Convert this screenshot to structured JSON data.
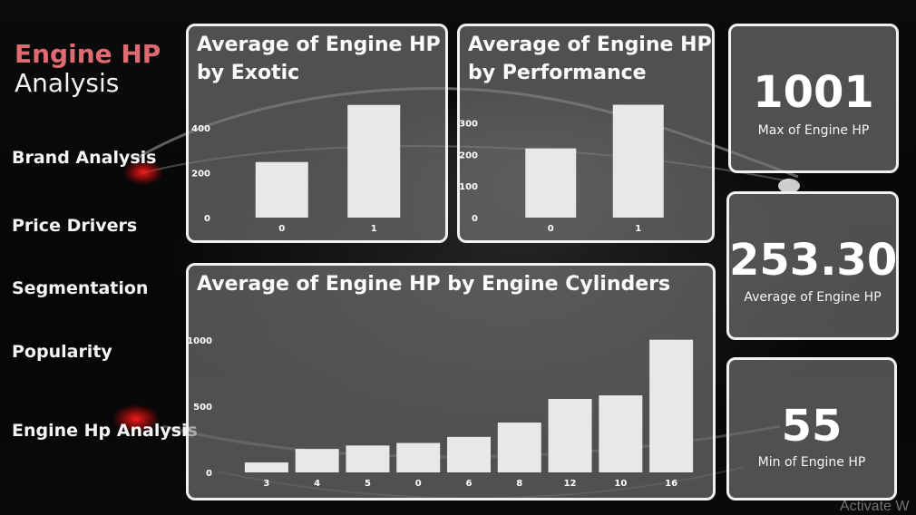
{
  "header": {
    "title_accent": "Engine HP",
    "title_rest": "Analysis"
  },
  "nav": [
    {
      "label": "Brand Analysis"
    },
    {
      "label": "Price Drivers"
    },
    {
      "label": "Segmentation"
    },
    {
      "label": "Popularity"
    },
    {
      "label": "Engine Hp Analysis"
    }
  ],
  "colors": {
    "accent": "#e06a72",
    "bar": "#e8e8e8",
    "panel_border": "#f1f1f1"
  },
  "kpis": [
    {
      "value": "1001",
      "label": "Max of Engine HP"
    },
    {
      "value": "253.30",
      "label": "Average of Engine HP"
    },
    {
      "value": "55",
      "label": "Min of Engine HP"
    }
  ],
  "watermark": "Activate W",
  "chart_data": [
    {
      "type": "bar",
      "title": "Average of Engine HP\nby Exotic",
      "categories": [
        "0",
        "1"
      ],
      "values": [
        247,
        501
      ],
      "yticks": [
        0,
        200,
        400
      ],
      "ylim": [
        0,
        520
      ],
      "grid": false
    },
    {
      "type": "bar",
      "title": "Average of Engine HP\nby Performance",
      "categories": [
        "0",
        "1"
      ],
      "values": [
        219,
        357
      ],
      "yticks": [
        0,
        100,
        200,
        300
      ],
      "ylim": [
        0,
        370
      ],
      "grid": false
    },
    {
      "type": "bar",
      "title": "Average of Engine HP by Engine Cylinders",
      "categories": [
        "3",
        "4",
        "5",
        "0",
        "6",
        "8",
        "12",
        "10",
        "16"
      ],
      "values": [
        75,
        177,
        203,
        222,
        268,
        376,
        554,
        581,
        1001
      ],
      "yticks": [
        0,
        500,
        1000
      ],
      "ylim": [
        0,
        1040
      ],
      "grid": false
    }
  ]
}
